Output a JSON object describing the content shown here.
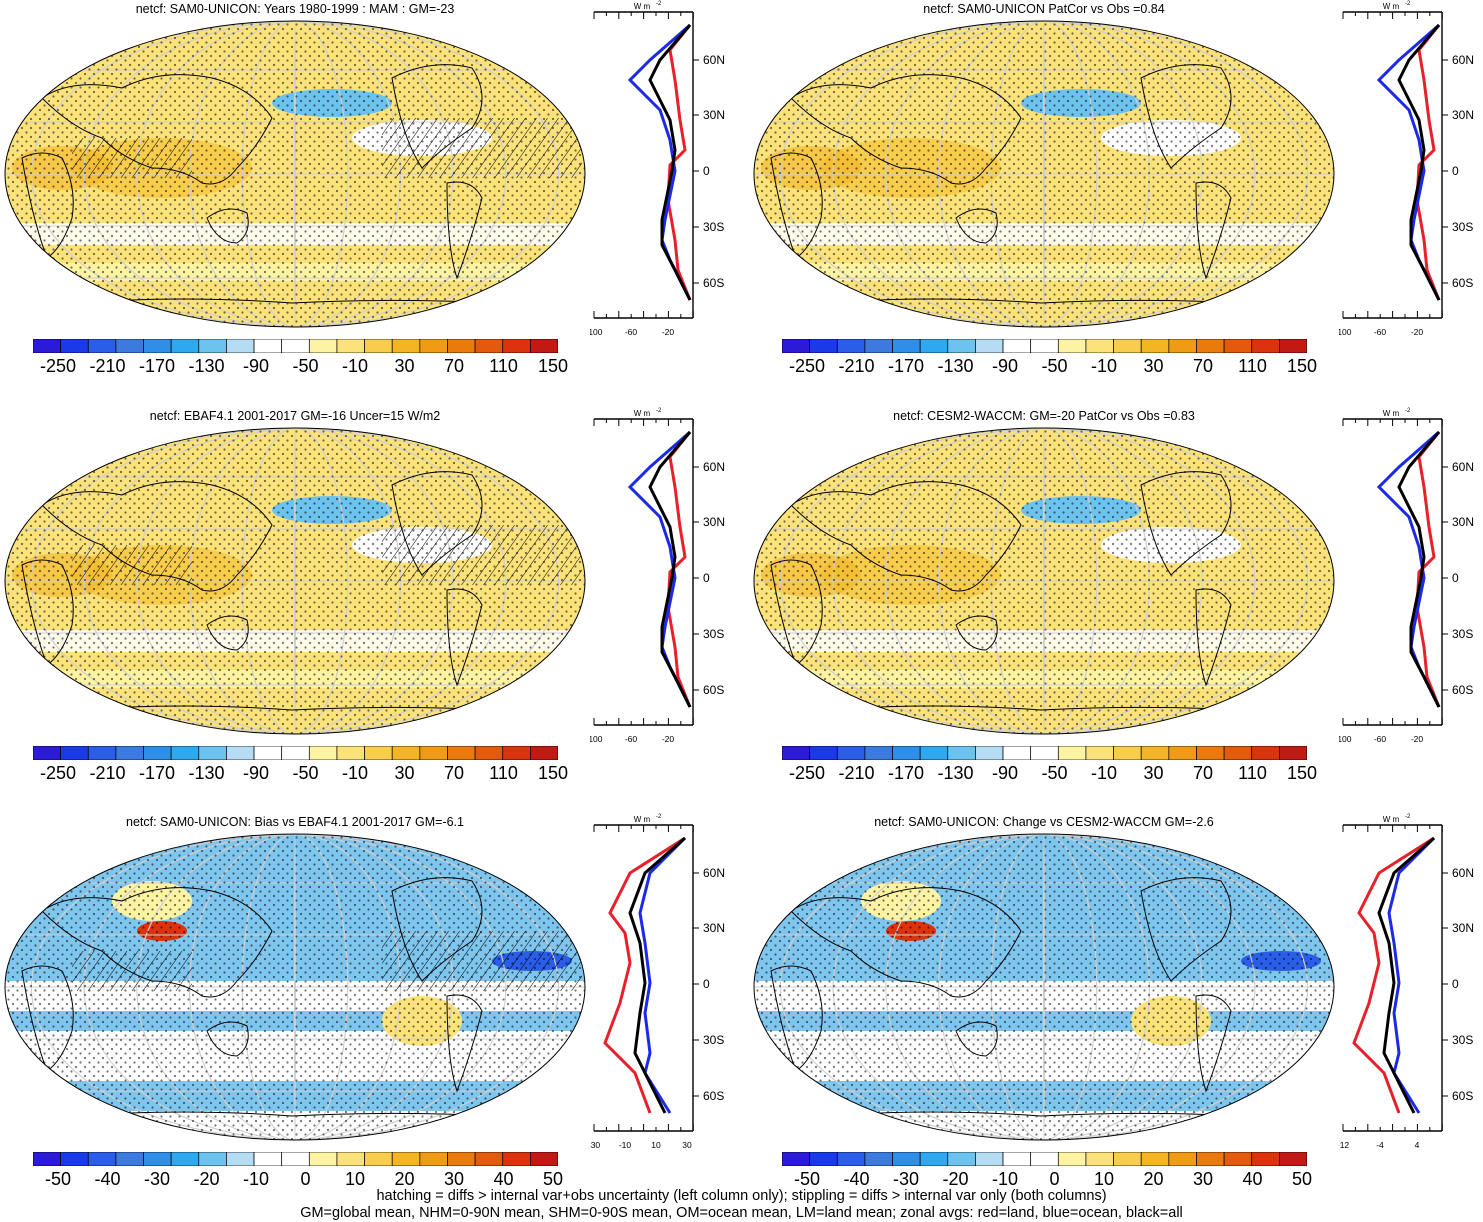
{
  "panels": [
    {
      "title": "netcf: SAM0-UNICON: Years 1980-1999 : MAM : GM=-23",
      "style": "yellow",
      "hatch": true,
      "xticks": [
        "-100",
        "-60",
        "-20"
      ],
      "colorbar": [
        "-250",
        "-210",
        "-170",
        "-130",
        "-90",
        "-50",
        "-10",
        "30",
        "70",
        "110",
        "150"
      ]
    },
    {
      "title": "netcf: SAM0-UNICON PatCor vs Obs =0.84",
      "style": "yellow",
      "hatch": false,
      "xticks": [
        "-100",
        "-60",
        "-20"
      ],
      "colorbar": [
        "-250",
        "-210",
        "-170",
        "-130",
        "-90",
        "-50",
        "-10",
        "30",
        "70",
        "110",
        "150"
      ]
    },
    {
      "title": "netcf: EBAF4.1 2001-2017 GM=-16 Uncer=15 W/m2",
      "style": "yellow",
      "hatch": true,
      "xticks": [
        "-100",
        "-60",
        "-20"
      ],
      "colorbar": [
        "-250",
        "-210",
        "-170",
        "-130",
        "-90",
        "-50",
        "-10",
        "30",
        "70",
        "110",
        "150"
      ]
    },
    {
      "title": "netcf: CESM2-WACCM: GM=-20 PatCor vs Obs =0.83",
      "style": "yellow",
      "hatch": false,
      "xticks": [
        "-100",
        "-60",
        "-20"
      ],
      "colorbar": [
        "-250",
        "-210",
        "-170",
        "-130",
        "-90",
        "-50",
        "-10",
        "30",
        "70",
        "110",
        "150"
      ]
    },
    {
      "title": "netcf: SAM0-UNICON: Bias vs EBAF4.1 2001-2017 GM=-6.1",
      "style": "blue",
      "hatch": true,
      "xticks": [
        "-30",
        "-10",
        "10",
        "30"
      ],
      "colorbar": [
        "-50",
        "-40",
        "-30",
        "-20",
        "-10",
        "0",
        "10",
        "20",
        "30",
        "40",
        "50"
      ]
    },
    {
      "title": "netcf: SAM0-UNICON: Change vs CESM2-WACCM GM=-2.6",
      "style": "blue",
      "hatch": false,
      "xticks": [
        "-12",
        "-4",
        "4"
      ],
      "colorbar": [
        "-50",
        "-40",
        "-30",
        "-20",
        "-10",
        "0",
        "10",
        "20",
        "30",
        "40",
        "50"
      ]
    }
  ],
  "lat_labels": [
    "60N",
    "30N",
    "0",
    "30S",
    "60S"
  ],
  "units": "W m-2",
  "footer": {
    "line1": "hatching = diffs > internal var+obs uncertainty (left column only); stippling = diffs > internal var only (both columns)",
    "line2": "GM=global mean, NHM=0-90N mean, SHM=0-90S mean, OM=ocean mean, LM=land mean; zonal avgs: red=land, blue=ocean, black=all"
  },
  "colors": {
    "scale": [
      "#2b1ad8",
      "#1a39e8",
      "#2a5ee8",
      "#3b7be0",
      "#2f8fe8",
      "#2ea9f0",
      "#6cc3ee",
      "#b5dcf2",
      "#ffffff",
      "#ffffff",
      "#fdf3a3",
      "#fbe27a",
      "#f8cd4b",
      "#f3b526",
      "#f09b16",
      "#ea7a0c",
      "#e35a0c",
      "#dc330f",
      "#c11a14"
    ],
    "land": "#e8202a",
    "ocean": "#1c2ae8",
    "all": "#000000"
  }
}
